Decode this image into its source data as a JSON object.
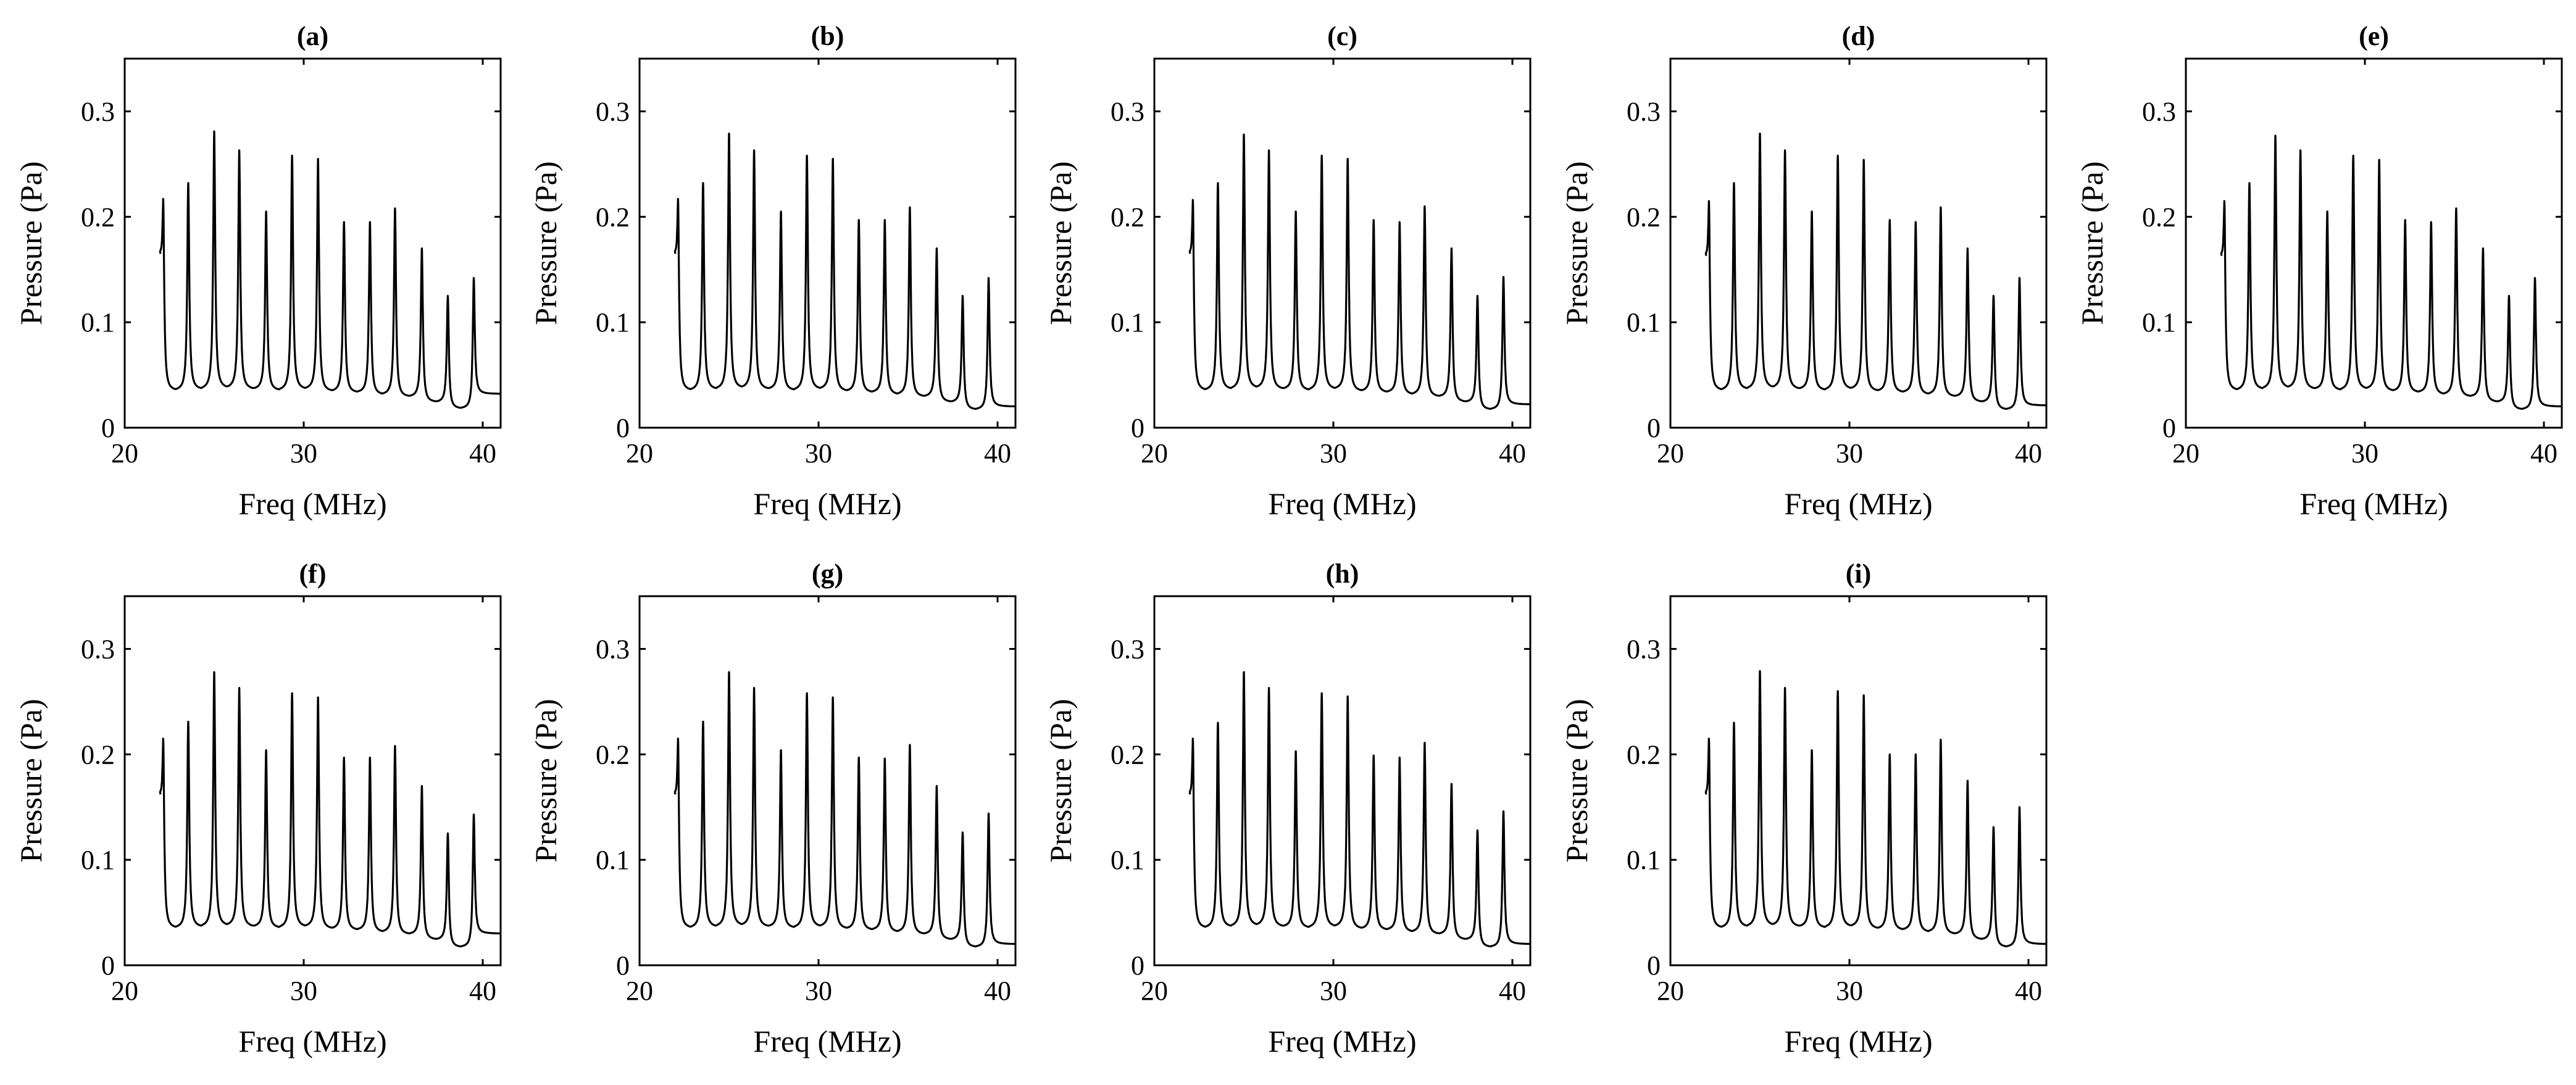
{
  "figure_colors": {
    "background": "#ffffff",
    "line": "#000000"
  },
  "chart_data": [
    {
      "type": "line",
      "title": "(a)",
      "xlabel": "Freq (MHz)",
      "ylabel": "Pressure (Pa)",
      "xlim": [
        20,
        41
      ],
      "ylim": [
        0,
        0.35
      ],
      "xticks": [
        20,
        30,
        40
      ],
      "xtick_labels": [
        "20",
        "30",
        "40"
      ],
      "yticks": [
        0,
        0.1,
        0.2,
        0.3
      ],
      "ytick_labels": [
        "0",
        "0.1",
        "0.2",
        "0.3"
      ],
      "start": {
        "x": 22.0,
        "y": 0.165
      },
      "peaks_freq": [
        22.15,
        23.55,
        25.0,
        26.4,
        27.9,
        29.35,
        30.8,
        32.25,
        33.7,
        35.1,
        36.6,
        38.05,
        39.5
      ],
      "peaks": [
        0.217,
        0.232,
        0.281,
        0.263,
        0.205,
        0.258,
        0.255,
        0.195,
        0.195,
        0.208,
        0.17,
        0.125,
        0.142
      ],
      "valleys": [
        0.035,
        0.036,
        0.037,
        0.036,
        0.035,
        0.036,
        0.034,
        0.033,
        0.031,
        0.029,
        0.024,
        0.018
      ],
      "end": {
        "x": 41.0,
        "y": 0.032
      }
    },
    {
      "type": "line",
      "title": "(b)",
      "xlabel": "Freq (MHz)",
      "ylabel": "Pressure (Pa)",
      "xlim": [
        20,
        41
      ],
      "ylim": [
        0,
        0.35
      ],
      "xticks": [
        20,
        30,
        40
      ],
      "xtick_labels": [
        "20",
        "30",
        "40"
      ],
      "yticks": [
        0,
        0.1,
        0.2,
        0.3
      ],
      "ytick_labels": [
        "0",
        "0.1",
        "0.2",
        "0.3"
      ],
      "start": {
        "x": 22.0,
        "y": 0.165
      },
      "peaks_freq": [
        22.15,
        23.55,
        25.0,
        26.4,
        27.9,
        29.35,
        30.8,
        32.25,
        33.7,
        35.1,
        36.6,
        38.05,
        39.5
      ],
      "peaks": [
        0.217,
        0.232,
        0.279,
        0.263,
        0.205,
        0.258,
        0.255,
        0.197,
        0.197,
        0.209,
        0.17,
        0.125,
        0.142
      ],
      "valleys": [
        0.035,
        0.036,
        0.037,
        0.036,
        0.035,
        0.036,
        0.034,
        0.033,
        0.031,
        0.029,
        0.024,
        0.017
      ],
      "end": {
        "x": 41.0,
        "y": 0.02
      }
    },
    {
      "type": "line",
      "title": "(c)",
      "xlabel": "Freq (MHz)",
      "ylabel": "Pressure (Pa)",
      "xlim": [
        20,
        41
      ],
      "ylim": [
        0,
        0.35
      ],
      "xticks": [
        20,
        30,
        40
      ],
      "xtick_labels": [
        "20",
        "30",
        "40"
      ],
      "yticks": [
        0,
        0.1,
        0.2,
        0.3
      ],
      "ytick_labels": [
        "0",
        "0.1",
        "0.2",
        "0.3"
      ],
      "start": {
        "x": 22.0,
        "y": 0.165
      },
      "peaks_freq": [
        22.15,
        23.55,
        25.0,
        26.4,
        27.9,
        29.35,
        30.8,
        32.25,
        33.7,
        35.1,
        36.6,
        38.05,
        39.5
      ],
      "peaks": [
        0.216,
        0.232,
        0.278,
        0.263,
        0.205,
        0.258,
        0.255,
        0.197,
        0.195,
        0.21,
        0.17,
        0.125,
        0.143
      ],
      "valleys": [
        0.035,
        0.036,
        0.037,
        0.036,
        0.035,
        0.036,
        0.034,
        0.033,
        0.031,
        0.029,
        0.024,
        0.017
      ],
      "end": {
        "x": 41.0,
        "y": 0.022
      }
    },
    {
      "type": "line",
      "title": "(d)",
      "xlabel": "Freq (MHz)",
      "ylabel": "Pressure (Pa)",
      "xlim": [
        20,
        41
      ],
      "ylim": [
        0,
        0.35
      ],
      "xticks": [
        20,
        30,
        40
      ],
      "xtick_labels": [
        "20",
        "30",
        "40"
      ],
      "yticks": [
        0,
        0.1,
        0.2,
        0.3
      ],
      "ytick_labels": [
        "0",
        "0.1",
        "0.2",
        "0.3"
      ],
      "start": {
        "x": 22.0,
        "y": 0.163
      },
      "peaks_freq": [
        22.15,
        23.55,
        25.0,
        26.4,
        27.9,
        29.35,
        30.8,
        32.25,
        33.7,
        35.1,
        36.6,
        38.05,
        39.5
      ],
      "peaks": [
        0.215,
        0.232,
        0.279,
        0.263,
        0.205,
        0.258,
        0.254,
        0.197,
        0.195,
        0.209,
        0.17,
        0.125,
        0.142
      ],
      "valleys": [
        0.035,
        0.036,
        0.037,
        0.036,
        0.035,
        0.036,
        0.034,
        0.033,
        0.031,
        0.029,
        0.024,
        0.017
      ],
      "end": {
        "x": 41.0,
        "y": 0.021
      }
    },
    {
      "type": "line",
      "title": "(e)",
      "xlabel": "Freq (MHz)",
      "ylabel": "Pressure (Pa)",
      "xlim": [
        20,
        41
      ],
      "ylim": [
        0,
        0.35
      ],
      "xticks": [
        20,
        30,
        40
      ],
      "xtick_labels": [
        "20",
        "30",
        "40"
      ],
      "yticks": [
        0,
        0.1,
        0.2,
        0.3
      ],
      "ytick_labels": [
        "0",
        "0.1",
        "0.2",
        "0.3"
      ],
      "start": {
        "x": 22.0,
        "y": 0.163
      },
      "peaks_freq": [
        22.15,
        23.55,
        25.0,
        26.4,
        27.9,
        29.35,
        30.8,
        32.25,
        33.7,
        35.1,
        36.6,
        38.05,
        39.5
      ],
      "peaks": [
        0.215,
        0.232,
        0.277,
        0.263,
        0.205,
        0.258,
        0.254,
        0.197,
        0.195,
        0.208,
        0.17,
        0.125,
        0.142
      ],
      "valleys": [
        0.035,
        0.036,
        0.037,
        0.036,
        0.035,
        0.036,
        0.034,
        0.033,
        0.031,
        0.029,
        0.024,
        0.017
      ],
      "end": {
        "x": 41.0,
        "y": 0.02
      }
    },
    {
      "type": "line",
      "title": "(f)",
      "xlabel": "Freq (MHz)",
      "ylabel": "Pressure (Pa)",
      "xlim": [
        20,
        41
      ],
      "ylim": [
        0,
        0.35
      ],
      "xticks": [
        20,
        30,
        40
      ],
      "xtick_labels": [
        "20",
        "30",
        "40"
      ],
      "yticks": [
        0,
        0.1,
        0.2,
        0.3
      ],
      "ytick_labels": [
        "0",
        "0.1",
        "0.2",
        "0.3"
      ],
      "start": {
        "x": 22.0,
        "y": 0.162
      },
      "peaks_freq": [
        22.15,
        23.55,
        25.0,
        26.4,
        27.9,
        29.35,
        30.8,
        32.25,
        33.7,
        35.1,
        36.6,
        38.05,
        39.5
      ],
      "peaks": [
        0.215,
        0.231,
        0.278,
        0.263,
        0.204,
        0.258,
        0.254,
        0.197,
        0.197,
        0.208,
        0.17,
        0.125,
        0.143
      ],
      "valleys": [
        0.035,
        0.036,
        0.037,
        0.036,
        0.035,
        0.036,
        0.034,
        0.033,
        0.031,
        0.029,
        0.024,
        0.017
      ],
      "end": {
        "x": 41.0,
        "y": 0.03
      }
    },
    {
      "type": "line",
      "title": "(g)",
      "xlabel": "Freq (MHz)",
      "ylabel": "Pressure (Pa)",
      "xlim": [
        20,
        41
      ],
      "ylim": [
        0,
        0.35
      ],
      "xticks": [
        20,
        30,
        40
      ],
      "xtick_labels": [
        "20",
        "30",
        "40"
      ],
      "yticks": [
        0,
        0.1,
        0.2,
        0.3
      ],
      "ytick_labels": [
        "0",
        "0.1",
        "0.2",
        "0.3"
      ],
      "start": {
        "x": 22.0,
        "y": 0.162
      },
      "peaks_freq": [
        22.15,
        23.55,
        25.0,
        26.4,
        27.9,
        29.35,
        30.8,
        32.25,
        33.7,
        35.1,
        36.6,
        38.05,
        39.5
      ],
      "peaks": [
        0.215,
        0.231,
        0.278,
        0.263,
        0.204,
        0.258,
        0.254,
        0.197,
        0.196,
        0.209,
        0.17,
        0.126,
        0.144
      ],
      "valleys": [
        0.035,
        0.036,
        0.037,
        0.036,
        0.035,
        0.036,
        0.034,
        0.033,
        0.031,
        0.029,
        0.024,
        0.017
      ],
      "end": {
        "x": 41.0,
        "y": 0.02
      }
    },
    {
      "type": "line",
      "title": "(h)",
      "xlabel": "Freq (MHz)",
      "ylabel": "Pressure (Pa)",
      "xlim": [
        20,
        41
      ],
      "ylim": [
        0,
        0.35
      ],
      "xticks": [
        20,
        30,
        40
      ],
      "xtick_labels": [
        "20",
        "30",
        "40"
      ],
      "yticks": [
        0,
        0.1,
        0.2,
        0.3
      ],
      "ytick_labels": [
        "0",
        "0.1",
        "0.2",
        "0.3"
      ],
      "start": {
        "x": 22.0,
        "y": 0.162
      },
      "peaks_freq": [
        22.15,
        23.55,
        25.0,
        26.4,
        27.9,
        29.35,
        30.8,
        32.25,
        33.7,
        35.1,
        36.6,
        38.05,
        39.5
      ],
      "peaks": [
        0.215,
        0.23,
        0.278,
        0.263,
        0.203,
        0.258,
        0.255,
        0.199,
        0.197,
        0.211,
        0.172,
        0.128,
        0.146
      ],
      "valleys": [
        0.035,
        0.036,
        0.037,
        0.036,
        0.035,
        0.036,
        0.034,
        0.033,
        0.031,
        0.029,
        0.024,
        0.017
      ],
      "end": {
        "x": 41.0,
        "y": 0.02
      }
    },
    {
      "type": "line",
      "title": "(i)",
      "xlabel": "Freq (MHz)",
      "ylabel": "Pressure (Pa)",
      "xlim": [
        20,
        41
      ],
      "ylim": [
        0,
        0.35
      ],
      "xticks": [
        20,
        30,
        40
      ],
      "xtick_labels": [
        "20",
        "30",
        "40"
      ],
      "yticks": [
        0,
        0.1,
        0.2,
        0.3
      ],
      "ytick_labels": [
        "0",
        "0.1",
        "0.2",
        "0.3"
      ],
      "start": {
        "x": 22.0,
        "y": 0.162
      },
      "peaks_freq": [
        22.15,
        23.55,
        25.0,
        26.4,
        27.9,
        29.35,
        30.8,
        32.25,
        33.7,
        35.1,
        36.6,
        38.05,
        39.5
      ],
      "peaks": [
        0.215,
        0.23,
        0.279,
        0.263,
        0.204,
        0.26,
        0.256,
        0.2,
        0.2,
        0.214,
        0.175,
        0.131,
        0.15
      ],
      "valleys": [
        0.035,
        0.036,
        0.037,
        0.036,
        0.035,
        0.036,
        0.034,
        0.033,
        0.031,
        0.029,
        0.024,
        0.017
      ],
      "end": {
        "x": 41.0,
        "y": 0.02
      }
    }
  ]
}
